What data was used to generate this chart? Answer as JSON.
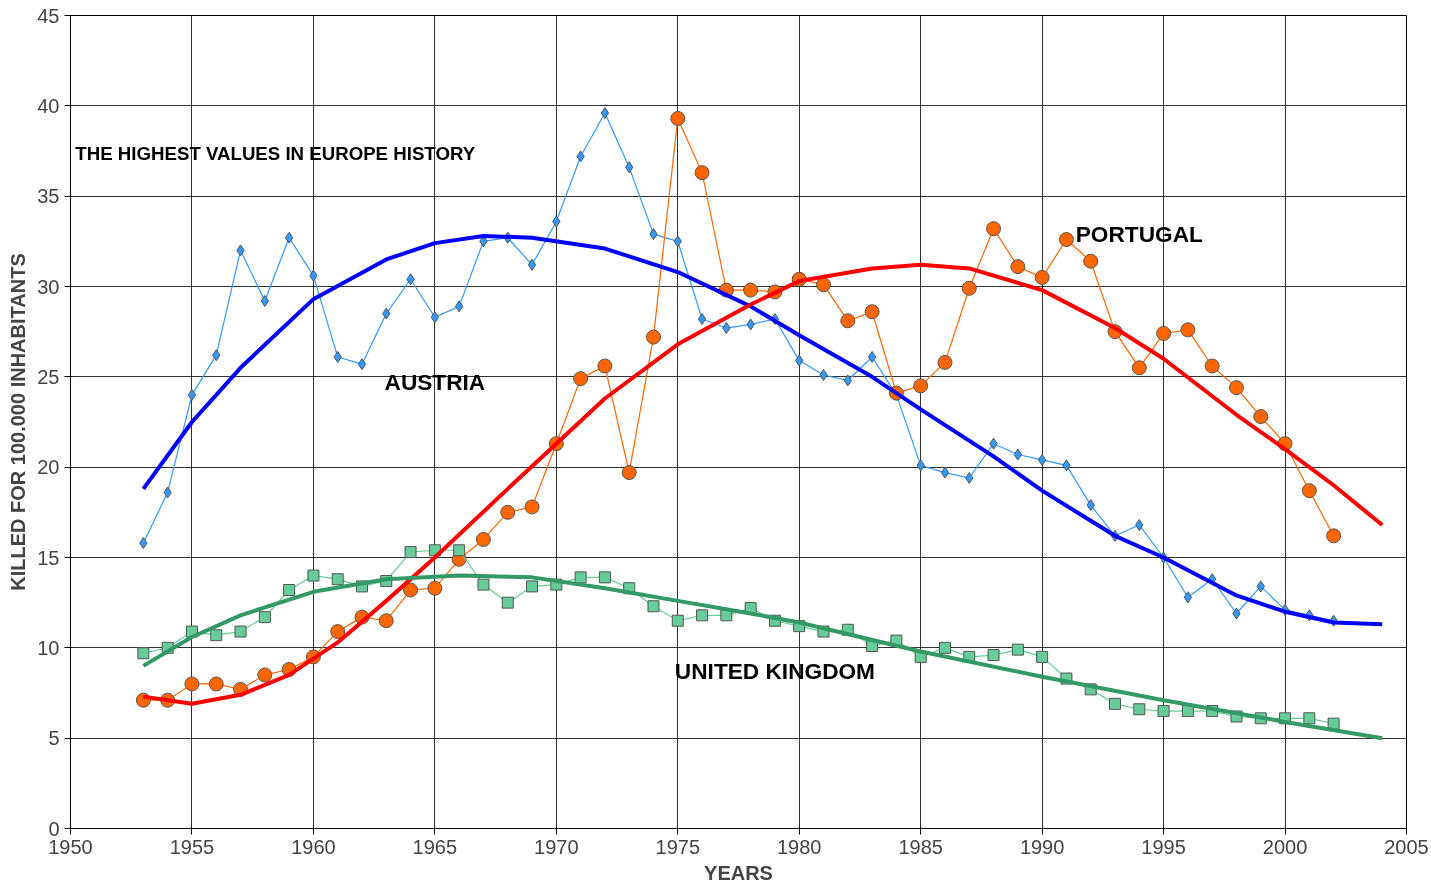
{
  "chart_data": {
    "type": "line",
    "xlabel": "YEARS",
    "ylabel": "KILLED FOR 100.000 INHABITANTS",
    "x": [
      1953,
      1954,
      1955,
      1956,
      1957,
      1958,
      1959,
      1960,
      1961,
      1962,
      1963,
      1964,
      1965,
      1966,
      1967,
      1968,
      1969,
      1970,
      1971,
      1972,
      1973,
      1974,
      1975,
      1976,
      1977,
      1978,
      1979,
      1980,
      1981,
      1982,
      1983,
      1984,
      1985,
      1986,
      1987,
      1988,
      1989,
      1990,
      1991,
      1992,
      1993,
      1994,
      1995,
      1996,
      1997,
      1998,
      1999,
      2000,
      2001,
      2002
    ],
    "series": [
      {
        "name": "AUSTRIA",
        "color": "#3399ff",
        "marker": "diamond",
        "values": [
          15.8,
          18.6,
          24.0,
          26.2,
          32.0,
          29.2,
          32.7,
          30.6,
          26.1,
          25.7,
          28.5,
          30.4,
          28.3,
          28.9,
          32.5,
          32.7,
          31.2,
          33.6,
          37.2,
          39.6,
          36.6,
          32.9,
          32.5,
          28.2,
          27.7,
          27.9,
          28.2,
          25.9,
          25.1,
          24.8,
          26.1,
          24.0,
          20.1,
          19.7,
          19.4,
          21.3,
          20.7,
          20.4,
          20.1,
          17.9,
          16.2,
          16.8,
          15.0,
          12.8,
          13.8,
          11.9,
          13.4,
          12.1,
          11.8,
          11.5
        ]
      },
      {
        "name": "PORTUGAL",
        "color": "#ff6600",
        "marker": "circle",
        "values": [
          7.1,
          7.1,
          8.0,
          8.0,
          7.7,
          8.5,
          8.8,
          9.5,
          10.9,
          11.7,
          11.5,
          13.2,
          13.3,
          14.9,
          16.0,
          17.5,
          17.8,
          21.3,
          24.9,
          25.6,
          19.7,
          27.2,
          39.3,
          36.3,
          29.8,
          29.8,
          29.7,
          30.4,
          30.1,
          28.1,
          28.6,
          24.1,
          24.5,
          25.8,
          29.9,
          33.2,
          31.1,
          30.5,
          32.6,
          31.4,
          27.5,
          25.5,
          27.4,
          27.6,
          25.6,
          24.4,
          22.8,
          21.3,
          18.7,
          16.2
        ]
      },
      {
        "name": "UNITED KINGDOM",
        "color": "#66cc99",
        "marker": "square",
        "values": [
          9.7,
          10.0,
          10.9,
          10.7,
          10.9,
          11.7,
          13.2,
          14.0,
          13.8,
          13.4,
          13.7,
          15.3,
          15.4,
          15.4,
          13.5,
          12.5,
          13.4,
          13.5,
          13.9,
          13.9,
          13.3,
          12.3,
          11.5,
          11.8,
          11.8,
          12.2,
          11.5,
          11.2,
          10.9,
          11.0,
          10.1,
          10.4,
          9.5,
          10.0,
          9.5,
          9.6,
          9.9,
          9.5,
          8.3,
          7.7,
          6.9,
          6.6,
          6.5,
          6.5,
          6.5,
          6.2,
          6.1,
          6.1,
          6.1,
          5.8
        ]
      },
      {
        "color": "#0000ff",
        "marker": "none",
        "x": [
          1953,
          1955,
          1957,
          1960,
          1963,
          1965,
          1967,
          1969,
          1972,
          1975,
          1978,
          1980,
          1983,
          1985,
          1988,
          1990,
          1993,
          1995,
          1998,
          2000,
          2002,
          2004
        ],
        "values": [
          18.8,
          22.5,
          25.5,
          29.3,
          31.5,
          32.4,
          32.8,
          32.7,
          32.1,
          30.8,
          28.9,
          27.3,
          25.0,
          23.2,
          20.6,
          18.7,
          16.2,
          15.0,
          12.9,
          12.0,
          11.4,
          11.3
        ]
      },
      {
        "color": "#ff0000",
        "marker": "none",
        "x": [
          1953,
          1955,
          1957,
          1959,
          1961,
          1963,
          1965,
          1968,
          1970,
          1972,
          1975,
          1978,
          1980,
          1983,
          1985,
          1987,
          1990,
          1993,
          1995,
          1998,
          2000,
          2002,
          2004
        ],
        "values": [
          7.3,
          6.9,
          7.4,
          8.5,
          10.3,
          12.6,
          15.0,
          18.8,
          21.3,
          23.8,
          26.8,
          29.0,
          30.3,
          31.0,
          31.2,
          31.0,
          29.8,
          27.7,
          26.0,
          22.9,
          21.0,
          19.0,
          16.8
        ]
      },
      {
        "color": "#339966",
        "marker": "none",
        "x": [
          1953,
          1955,
          1957,
          1960,
          1963,
          1966,
          1969,
          1972,
          1975,
          1978,
          1980,
          1985,
          1990,
          1995,
          2000,
          2004
        ],
        "values": [
          9.0,
          10.6,
          11.8,
          13.1,
          13.8,
          14.0,
          13.9,
          13.3,
          12.6,
          11.9,
          11.4,
          9.8,
          8.4,
          7.1,
          5.9,
          5.0
        ]
      }
    ],
    "annotations": [
      "THE HIGHEST VALUES IN EUROPE HISTORY"
    ],
    "xlim": [
      1950,
      2005
    ],
    "xticks": [
      1950,
      1955,
      1960,
      1965,
      1970,
      1975,
      1980,
      1985,
      1990,
      1995,
      2000,
      2005
    ],
    "ylim": [
      0,
      45
    ],
    "yticks": [
      0,
      5,
      10,
      15,
      20,
      25,
      30,
      35,
      40,
      45
    ],
    "grid": true
  }
}
